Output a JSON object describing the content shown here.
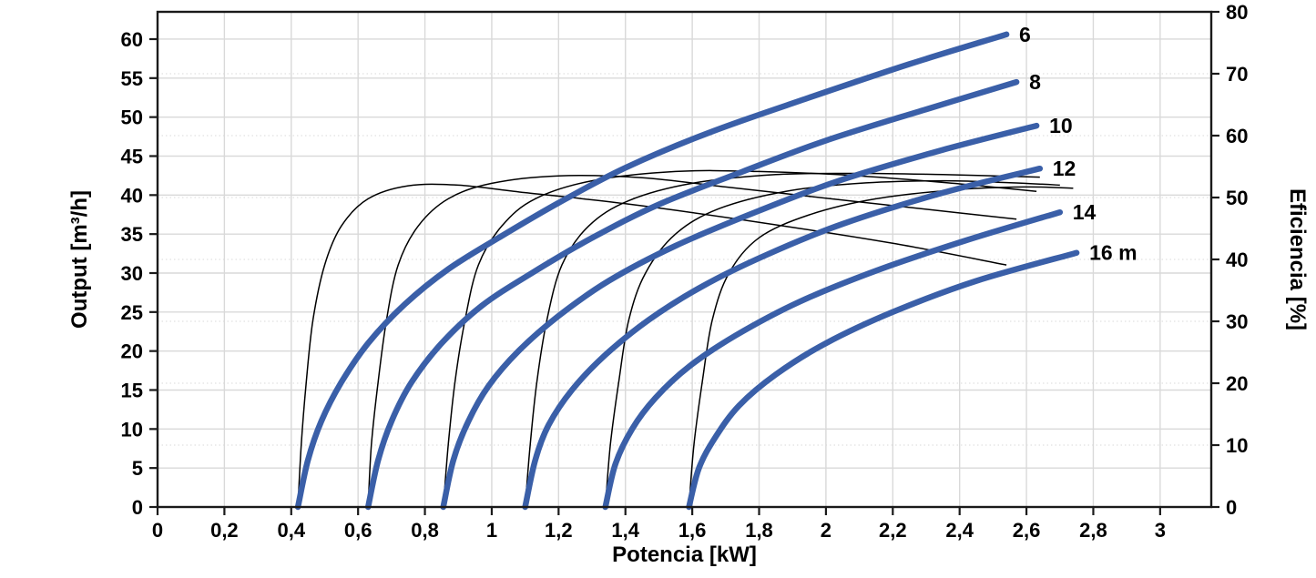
{
  "chart_data": {
    "type": "line",
    "title": "",
    "xlabel": "Potencia [kW]",
    "ylabel_left": "Output [m³/h]",
    "ylabel_right": "Eficiencia [%]",
    "grid": {
      "major_color": "#d9d9d9",
      "dotted_color": "#d9d9d9",
      "frame_color": "#1a1a1a"
    },
    "styles": {
      "head_curve_color": "#3a5fa8",
      "head_curve_width": 6.5,
      "efficiency_curve_color": "#000000",
      "efficiency_curve_width": 1.5,
      "label_color": "#000000"
    },
    "x_axis": {
      "min": 0,
      "max": 3.153,
      "ticks": [
        {
          "v": 0,
          "label": "0"
        },
        {
          "v": 0.2,
          "label": "0,2"
        },
        {
          "v": 0.4,
          "label": "0,4"
        },
        {
          "v": 0.6,
          "label": "0,6"
        },
        {
          "v": 0.8,
          "label": "0,8"
        },
        {
          "v": 1,
          "label": "1"
        },
        {
          "v": 1.2,
          "label": "1,2"
        },
        {
          "v": 1.4,
          "label": "1,4"
        },
        {
          "v": 1.6,
          "label": "1,6"
        },
        {
          "v": 1.8,
          "label": "1,8"
        },
        {
          "v": 2,
          "label": "2"
        },
        {
          "v": 2.2,
          "label": "2,2"
        },
        {
          "v": 2.4,
          "label": "2,4"
        },
        {
          "v": 2.6,
          "label": "2,6"
        },
        {
          "v": 2.8,
          "label": "2,8"
        },
        {
          "v": 3,
          "label": "3"
        }
      ]
    },
    "y_left": {
      "min": 0,
      "max": 63.5,
      "ticks": [
        {
          "v": 0,
          "label": "0"
        },
        {
          "v": 5,
          "label": "5"
        },
        {
          "v": 10,
          "label": "10"
        },
        {
          "v": 15,
          "label": "15"
        },
        {
          "v": 20,
          "label": "20"
        },
        {
          "v": 25,
          "label": "25"
        },
        {
          "v": 30,
          "label": "30"
        },
        {
          "v": 35,
          "label": "35"
        },
        {
          "v": 40,
          "label": "40"
        },
        {
          "v": 45,
          "label": "45"
        },
        {
          "v": 50,
          "label": "50"
        },
        {
          "v": 55,
          "label": "55"
        },
        {
          "v": 60,
          "label": "60"
        }
      ]
    },
    "y_right": {
      "min": 0,
      "max": 80,
      "ticks": [
        {
          "v": 0,
          "label": "0"
        },
        {
          "v": 10,
          "label": "10"
        },
        {
          "v": 20,
          "label": "20"
        },
        {
          "v": 30,
          "label": "30"
        },
        {
          "v": 40,
          "label": "40"
        },
        {
          "v": 50,
          "label": "50"
        },
        {
          "v": 60,
          "label": "60"
        },
        {
          "v": 70,
          "label": "70"
        },
        {
          "v": 80,
          "label": "80"
        }
      ]
    },
    "head_curves": [
      {
        "name": "head-6m",
        "label": "6",
        "points": [
          [
            0.42,
            0
          ],
          [
            0.45,
            6
          ],
          [
            0.49,
            11
          ],
          [
            0.55,
            16
          ],
          [
            0.63,
            21
          ],
          [
            0.74,
            26
          ],
          [
            0.87,
            30.5
          ],
          [
            1.02,
            34.5
          ],
          [
            1.2,
            39
          ],
          [
            1.4,
            43.5
          ],
          [
            1.65,
            48
          ],
          [
            1.95,
            52.5
          ],
          [
            2.25,
            56.8
          ],
          [
            2.54,
            60.6
          ]
        ]
      },
      {
        "name": "head-8m",
        "label": "8",
        "points": [
          [
            0.63,
            0
          ],
          [
            0.66,
            6
          ],
          [
            0.7,
            11
          ],
          [
            0.76,
            16
          ],
          [
            0.85,
            21
          ],
          [
            0.97,
            25.8
          ],
          [
            1.12,
            30
          ],
          [
            1.3,
            34.5
          ],
          [
            1.5,
            38.8
          ],
          [
            1.75,
            43
          ],
          [
            2.0,
            47
          ],
          [
            2.3,
            51
          ],
          [
            2.57,
            54.5
          ]
        ]
      },
      {
        "name": "head-10m",
        "label": "10",
        "points": [
          [
            0.855,
            0
          ],
          [
            0.885,
            6
          ],
          [
            0.93,
            11
          ],
          [
            0.99,
            15.5
          ],
          [
            1.08,
            20
          ],
          [
            1.2,
            24.5
          ],
          [
            1.35,
            29
          ],
          [
            1.55,
            33.5
          ],
          [
            1.8,
            38
          ],
          [
            2.05,
            42
          ],
          [
            2.35,
            45.8
          ],
          [
            2.63,
            48.9
          ]
        ]
      },
      {
        "name": "head-12m",
        "label": "12",
        "points": [
          [
            1.1,
            0
          ],
          [
            1.13,
            6
          ],
          [
            1.17,
            10.5
          ],
          [
            1.24,
            15
          ],
          [
            1.34,
            19.5
          ],
          [
            1.47,
            24
          ],
          [
            1.63,
            28.3
          ],
          [
            1.82,
            32.3
          ],
          [
            2.05,
            36.3
          ],
          [
            2.35,
            40.3
          ],
          [
            2.64,
            43.4
          ]
        ]
      },
      {
        "name": "head-14m",
        "label": "14",
        "points": [
          [
            1.34,
            0
          ],
          [
            1.37,
            5.5
          ],
          [
            1.42,
            10
          ],
          [
            1.49,
            14
          ],
          [
            1.59,
            18
          ],
          [
            1.73,
            22
          ],
          [
            1.92,
            26.3
          ],
          [
            2.15,
            30.3
          ],
          [
            2.42,
            34.2
          ],
          [
            2.7,
            37.8
          ]
        ]
      },
      {
        "name": "head-16m",
        "label": "16 m",
        "points": [
          [
            1.59,
            0
          ],
          [
            1.62,
            5
          ],
          [
            1.67,
            9
          ],
          [
            1.74,
            13
          ],
          [
            1.85,
            17
          ],
          [
            2.0,
            21
          ],
          [
            2.2,
            25
          ],
          [
            2.45,
            29
          ],
          [
            2.75,
            32.6
          ]
        ]
      }
    ],
    "efficiency_curves": [
      {
        "name": "efficiency-6m",
        "points": [
          [
            0.42,
            0
          ],
          [
            0.43,
            10.1
          ],
          [
            0.445,
            20.2
          ],
          [
            0.465,
            30.2
          ],
          [
            0.5,
            39.1
          ],
          [
            0.55,
            45.4
          ],
          [
            0.63,
            49.8
          ],
          [
            0.75,
            51.9
          ],
          [
            0.9,
            52.0
          ],
          [
            1.1,
            50.8
          ],
          [
            1.4,
            49.0
          ],
          [
            1.8,
            46.0
          ],
          [
            2.2,
            42.6
          ],
          [
            2.54,
            39.1
          ]
        ]
      },
      {
        "name": "efficiency-8m",
        "points": [
          [
            0.63,
            0
          ],
          [
            0.64,
            10.1
          ],
          [
            0.66,
            20.2
          ],
          [
            0.685,
            30.2
          ],
          [
            0.72,
            39.1
          ],
          [
            0.78,
            45.4
          ],
          [
            0.87,
            49.8
          ],
          [
            1.0,
            52.3
          ],
          [
            1.2,
            53.5
          ],
          [
            1.45,
            53.2
          ],
          [
            1.7,
            51.7
          ],
          [
            2.0,
            49.9
          ],
          [
            2.3,
            48.1
          ],
          [
            2.57,
            46.5
          ]
        ]
      },
      {
        "name": "efficiency-10m",
        "points": [
          [
            0.855,
            0
          ],
          [
            0.87,
            10.1
          ],
          [
            0.89,
            20.2
          ],
          [
            0.92,
            30.2
          ],
          [
            0.96,
            39.1
          ],
          [
            1.03,
            45.4
          ],
          [
            1.13,
            49.8
          ],
          [
            1.3,
            52.7
          ],
          [
            1.55,
            54.2
          ],
          [
            1.8,
            54.2
          ],
          [
            2.1,
            53.5
          ],
          [
            2.4,
            52.2
          ],
          [
            2.63,
            51.0
          ]
        ]
      },
      {
        "name": "efficiency-12m",
        "points": [
          [
            1.1,
            0
          ],
          [
            1.115,
            10.1
          ],
          [
            1.135,
            20.2
          ],
          [
            1.165,
            30.2
          ],
          [
            1.21,
            39.1
          ],
          [
            1.29,
            45.4
          ],
          [
            1.41,
            49.5
          ],
          [
            1.6,
            52.3
          ],
          [
            1.85,
            53.7
          ],
          [
            2.1,
            53.9
          ],
          [
            2.35,
            53.7
          ],
          [
            2.64,
            53.3
          ]
        ]
      },
      {
        "name": "efficiency-14m",
        "points": [
          [
            1.34,
            0
          ],
          [
            1.355,
            10.1
          ],
          [
            1.38,
            20.2
          ],
          [
            1.41,
            30.2
          ],
          [
            1.46,
            37.8
          ],
          [
            1.55,
            44.1
          ],
          [
            1.68,
            48.2
          ],
          [
            1.88,
            51.0
          ],
          [
            2.1,
            52.3
          ],
          [
            2.35,
            52.7
          ],
          [
            2.55,
            52.4
          ],
          [
            2.7,
            52.0
          ]
        ]
      },
      {
        "name": "efficiency-16m",
        "points": [
          [
            1.59,
            0
          ],
          [
            1.605,
            10.1
          ],
          [
            1.63,
            20.2
          ],
          [
            1.66,
            30.2
          ],
          [
            1.71,
            37.8
          ],
          [
            1.8,
            43.5
          ],
          [
            1.95,
            47.2
          ],
          [
            2.15,
            49.8
          ],
          [
            2.4,
            51.3
          ],
          [
            2.6,
            51.7
          ],
          [
            2.74,
            51.5
          ]
        ]
      }
    ]
  }
}
